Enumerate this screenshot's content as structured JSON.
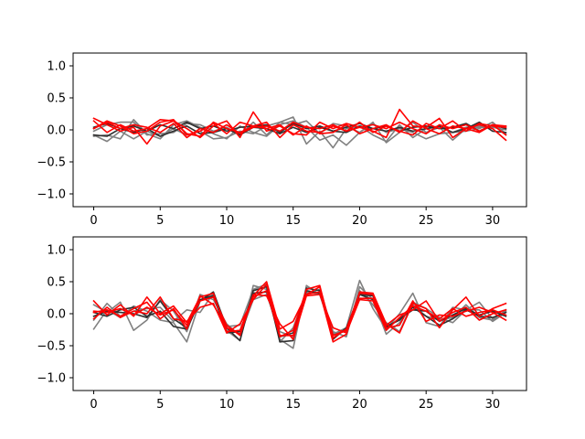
{
  "chart_data": [
    {
      "type": "line",
      "title": "",
      "xlabel": "",
      "ylabel": "",
      "xlim": [
        -1.55,
        32.55
      ],
      "ylim": [
        -1.2,
        1.2
      ],
      "x": [
        0,
        1,
        2,
        3,
        4,
        5,
        6,
        7,
        8,
        9,
        10,
        11,
        12,
        13,
        14,
        15,
        16,
        17,
        18,
        19,
        20,
        21,
        22,
        23,
        24,
        25,
        26,
        27,
        28,
        29,
        30,
        31
      ],
      "xticks": [
        0,
        5,
        10,
        15,
        20,
        25,
        30
      ],
      "yticks": [
        -1.0,
        -0.5,
        0.0,
        0.5,
        1.0
      ],
      "xtick_labels": [
        "0",
        "5",
        "10",
        "15",
        "20",
        "25",
        "30"
      ],
      "ytick_labels": [
        "−1.0",
        "−0.5",
        "0.0",
        "0.5",
        "1.0"
      ],
      "series": [
        {
          "color": "#808080",
          "values": [
            -0.08,
            -0.18,
            -0.02,
            -0.14,
            -0.02,
            -0.1,
            0.02,
            -0.08,
            -0.02,
            -0.14,
            -0.12,
            -0.02,
            -0.06,
            0.06,
            0.12,
            0.2,
            -0.22,
            -0.02,
            -0.28,
            0.02,
            0.06,
            -0.08,
            -0.18,
            0.08,
            -0.12,
            0.02,
            0.04,
            -0.16,
            0.02,
            0.04,
            0.04,
            0.0
          ]
        },
        {
          "color": "#808080",
          "values": [
            -0.1,
            -0.08,
            -0.14,
            0.16,
            -0.06,
            -0.14,
            0.08,
            0.14,
            0.04,
            -0.06,
            -0.14,
            0.06,
            -0.04,
            -0.1,
            0.08,
            0.14,
            0.04,
            -0.16,
            -0.08,
            -0.24,
            -0.04,
            0.1,
            -0.04,
            0.02,
            -0.04,
            -0.14,
            -0.06,
            -0.04,
            -0.02,
            0.02,
            0.12,
            -0.06
          ]
        },
        {
          "color": "#808080",
          "values": [
            -0.02,
            0.08,
            0.12,
            0.12,
            -0.08,
            -0.06,
            -0.04,
            0.1,
            0.08,
            -0.02,
            0.04,
            -0.08,
            0.12,
            -0.08,
            0.12,
            0.08,
            0.14,
            -0.06,
            0.1,
            0.06,
            -0.04,
            0.12,
            -0.2,
            -0.04,
            0.12,
            -0.04,
            0.04,
            -0.04,
            0.04,
            0.06,
            0.04,
            0.06
          ]
        },
        {
          "color": "#303030",
          "values": [
            -0.08,
            -0.1,
            0.02,
            -0.04,
            0.02,
            -0.1,
            -0.02,
            0.06,
            -0.06,
            -0.04,
            0.02,
            -0.08,
            0.04,
            0.02,
            -0.06,
            0.04,
            -0.04,
            0.04,
            -0.02,
            -0.04,
            0.06,
            0.02,
            -0.02,
            0.04,
            -0.02,
            0.02,
            0.06,
            -0.04,
            0.02,
            0.12,
            -0.02,
            -0.04
          ]
        },
        {
          "color": "#303030",
          "values": [
            0.04,
            0.1,
            0.02,
            0.06,
            -0.02,
            0.08,
            0.02,
            0.12,
            0.02,
            0.06,
            -0.02,
            0.04,
            0.06,
            0.08,
            -0.04,
            0.1,
            0.02,
            0.06,
            -0.02,
            0.04,
            0.1,
            0.02,
            0.06,
            -0.02,
            0.04,
            0.06,
            0.02,
            0.04,
            0.1,
            -0.02,
            0.08,
            0.02
          ]
        },
        {
          "color": "#ff0000",
          "values": [
            0.18,
            0.08,
            -0.02,
            0.04,
            -0.22,
            0.06,
            0.14,
            0.02,
            -0.12,
            0.06,
            0.14,
            -0.12,
            0.28,
            -0.02,
            0.06,
            -0.06,
            -0.08,
            0.12,
            0.02,
            0.1,
            0.04,
            -0.02,
            -0.12,
            0.32,
            0.06,
            0.04,
            0.18,
            -0.12,
            0.02,
            0.08,
            0.02,
            -0.16
          ]
        },
        {
          "color": "#ff0000",
          "values": [
            0.02,
            0.14,
            0.06,
            -0.06,
            -0.02,
            0.12,
            0.16,
            -0.08,
            -0.02,
            0.1,
            -0.06,
            0.12,
            0.06,
            0.12,
            -0.12,
            0.08,
            -0.02,
            -0.04,
            0.06,
            -0.02,
            0.12,
            -0.04,
            0.06,
            -0.02,
            -0.08,
            0.1,
            0.02,
            0.14,
            -0.02,
            0.1,
            0.06,
            0.04
          ]
        },
        {
          "color": "#ff0000",
          "values": [
            0.14,
            -0.04,
            0.08,
            -0.02,
            0.02,
            0.16,
            0.14,
            -0.06,
            -0.1,
            0.12,
            0.02,
            -0.04,
            0.06,
            0.02,
            0.08,
            -0.08,
            0.06,
            -0.06,
            -0.04,
            0.08,
            -0.06,
            0.02,
            0.08,
            -0.04,
            0.14,
            0.02,
            -0.06,
            0.06,
            0.02,
            -0.04,
            0.08,
            0.06
          ]
        },
        {
          "color": "#ff0000",
          "values": [
            0.02,
            0.12,
            0.02,
            0.08,
            0.04,
            -0.04,
            0.1,
            -0.12,
            0.02,
            -0.04,
            0.08,
            -0.06,
            0.04,
            0.06,
            -0.02,
            0.12,
            0.04,
            0.02,
            0.08,
            -0.02,
            0.04,
            0.08,
            0.02,
            0.12,
            0.02,
            -0.06,
            0.08,
            0.02,
            0.08,
            -0.02,
            0.08,
            -0.08
          ]
        }
      ]
    },
    {
      "type": "line",
      "title": "",
      "xlabel": "",
      "ylabel": "",
      "xlim": [
        -1.55,
        32.55
      ],
      "ylim": [
        -1.2,
        1.2
      ],
      "x": [
        0,
        1,
        2,
        3,
        4,
        5,
        6,
        7,
        8,
        9,
        10,
        11,
        12,
        13,
        14,
        15,
        16,
        17,
        18,
        19,
        20,
        21,
        22,
        23,
        24,
        25,
        26,
        27,
        28,
        29,
        30,
        31
      ],
      "xticks": [
        0,
        5,
        10,
        15,
        20,
        25,
        30
      ],
      "yticks": [
        -1.0,
        -0.5,
        0.0,
        0.5,
        1.0
      ],
      "xtick_labels": [
        "0",
        "5",
        "10",
        "15",
        "20",
        "25",
        "30"
      ],
      "ytick_labels": [
        "−1.0",
        "−0.5",
        "0.0",
        "0.5",
        "1.0"
      ],
      "series": [
        {
          "color": "#808080",
          "values": [
            -0.24,
            0.06,
            -0.06,
            0.12,
            0.04,
            -0.1,
            -0.14,
            -0.44,
            0.2,
            0.3,
            -0.26,
            -0.42,
            0.44,
            0.38,
            -0.4,
            -0.54,
            0.44,
            0.3,
            -0.32,
            -0.22,
            0.52,
            0.08,
            -0.24,
            0.0,
            0.32,
            -0.14,
            -0.2,
            0.1,
            0.06,
            0.18,
            -0.08,
            0.04
          ]
        },
        {
          "color": "#808080",
          "values": [
            0.14,
            0.02,
            0.18,
            -0.26,
            -0.1,
            0.22,
            0.04,
            -0.28,
            0.3,
            0.22,
            -0.16,
            -0.34,
            0.22,
            0.3,
            -0.28,
            -0.36,
            0.32,
            0.38,
            -0.28,
            -0.36,
            0.42,
            0.22,
            -0.32,
            -0.14,
            0.14,
            -0.04,
            -0.1,
            -0.06,
            0.14,
            -0.06,
            -0.1,
            0.06
          ]
        },
        {
          "color": "#808080",
          "values": [
            -0.1,
            0.16,
            -0.04,
            0.04,
            0.08,
            0.1,
            -0.12,
            0.06,
            0.02,
            0.32,
            -0.2,
            -0.18,
            0.38,
            0.46,
            -0.44,
            -0.22,
            0.34,
            0.3,
            -0.3,
            -0.28,
            0.36,
            0.14,
            -0.14,
            -0.28,
            0.18,
            0.08,
            -0.06,
            -0.14,
            0.06,
            0.06,
            -0.12,
            0.02
          ]
        },
        {
          "color": "#303030",
          "values": [
            0.02,
            -0.04,
            0.06,
            0.1,
            -0.04,
            0.04,
            -0.2,
            -0.24,
            0.2,
            0.34,
            -0.22,
            -0.42,
            0.36,
            0.42,
            -0.44,
            -0.42,
            0.4,
            0.36,
            -0.4,
            -0.22,
            0.3,
            0.28,
            -0.2,
            -0.1,
            0.1,
            -0.04,
            -0.18,
            -0.08,
            0.06,
            -0.04,
            -0.06,
            0.02
          ]
        },
        {
          "color": "#303030",
          "values": [
            -0.04,
            0.04,
            0.02,
            0.0,
            -0.06,
            0.2,
            -0.08,
            -0.22,
            0.22,
            0.28,
            -0.3,
            -0.28,
            0.32,
            0.34,
            -0.36,
            -0.3,
            0.36,
            0.32,
            -0.34,
            -0.26,
            0.3,
            0.22,
            -0.22,
            -0.08,
            0.06,
            0.04,
            -0.12,
            -0.02,
            0.08,
            -0.02,
            0.04,
            -0.04
          ]
        },
        {
          "color": "#ff0000",
          "values": [
            0.2,
            -0.02,
            0.14,
            -0.04,
            0.26,
            0.0,
            0.12,
            -0.14,
            0.26,
            0.32,
            -0.28,
            -0.26,
            0.28,
            0.5,
            -0.24,
            -0.12,
            0.3,
            0.34,
            -0.44,
            -0.32,
            0.34,
            0.32,
            -0.16,
            -0.3,
            0.16,
            0.08,
            -0.22,
            0.06,
            0.26,
            -0.04,
            0.08,
            0.16
          ]
        },
        {
          "color": "#ff0000",
          "values": [
            0.02,
            0.06,
            -0.04,
            0.08,
            0.18,
            -0.08,
            0.08,
            -0.24,
            0.28,
            0.14,
            -0.22,
            -0.32,
            0.26,
            0.36,
            -0.36,
            -0.26,
            0.38,
            0.44,
            -0.38,
            -0.24,
            0.32,
            0.3,
            -0.22,
            -0.18,
            0.2,
            -0.12,
            -0.02,
            -0.04,
            0.04,
            0.1,
            0.02,
            -0.1
          ]
        },
        {
          "color": "#ff0000",
          "values": [
            -0.08,
            0.1,
            -0.06,
            0.04,
            0.0,
            0.26,
            -0.08,
            -0.12,
            0.1,
            0.16,
            -0.3,
            -0.16,
            0.22,
            0.46,
            -0.34,
            -0.34,
            0.3,
            0.42,
            -0.34,
            -0.26,
            0.24,
            0.24,
            -0.18,
            -0.02,
            0.06,
            0.2,
            -0.12,
            0.02,
            0.1,
            -0.1,
            0.0,
            0.06
          ]
        },
        {
          "color": "#ff0000",
          "values": [
            0.04,
            0.02,
            0.08,
            -0.02,
            0.1,
            -0.02,
            0.06,
            -0.18,
            0.2,
            0.26,
            -0.18,
            -0.34,
            0.3,
            0.28,
            -0.16,
            -0.4,
            0.28,
            0.3,
            -0.22,
            -0.3,
            0.22,
            0.2,
            -0.26,
            -0.06,
            0.12,
            0.04,
            -0.08,
            0.08,
            -0.04,
            0.02,
            0.06,
            -0.02
          ]
        }
      ]
    }
  ]
}
